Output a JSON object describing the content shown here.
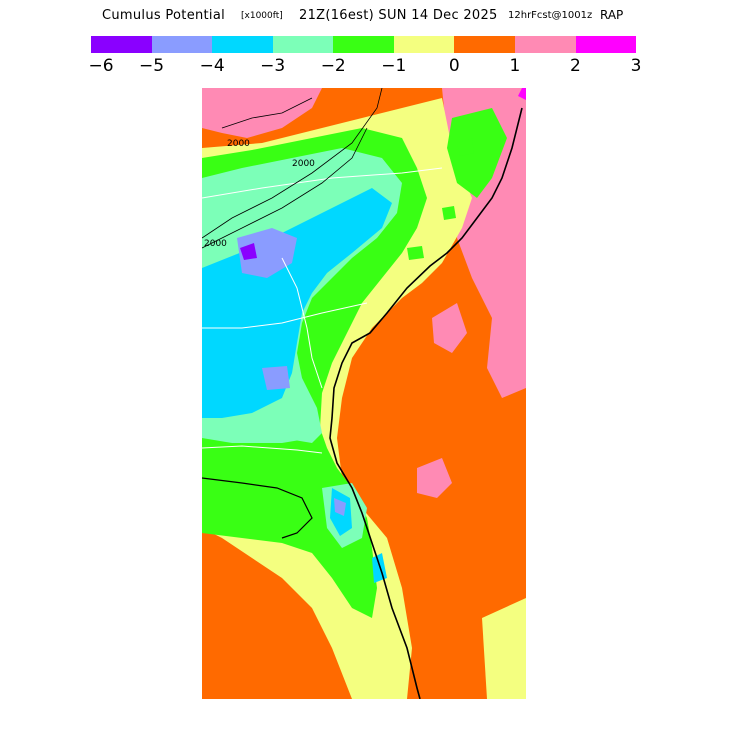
{
  "title": {
    "main": "Cumulus Potential",
    "units": "[x1000ft]",
    "time": "21Z(16est) SUN 14 Dec 2025",
    "forecast": "12hrFcst@1001z",
    "model": "RAP"
  },
  "colorbar": {
    "colors": [
      "#8a00ff",
      "#8a9cff",
      "#00d8ff",
      "#7cffb8",
      "#39ff14",
      "#f4ff80",
      "#ff6a00",
      "#ff8ab4",
      "#ff00ff"
    ],
    "ticks": [
      "−6",
      "−5",
      "−4",
      "−3",
      "−2",
      "−1",
      "0",
      "1",
      "2",
      "3"
    ]
  },
  "map": {
    "contour_labels": [
      "2000",
      "2000",
      "2000"
    ]
  }
}
